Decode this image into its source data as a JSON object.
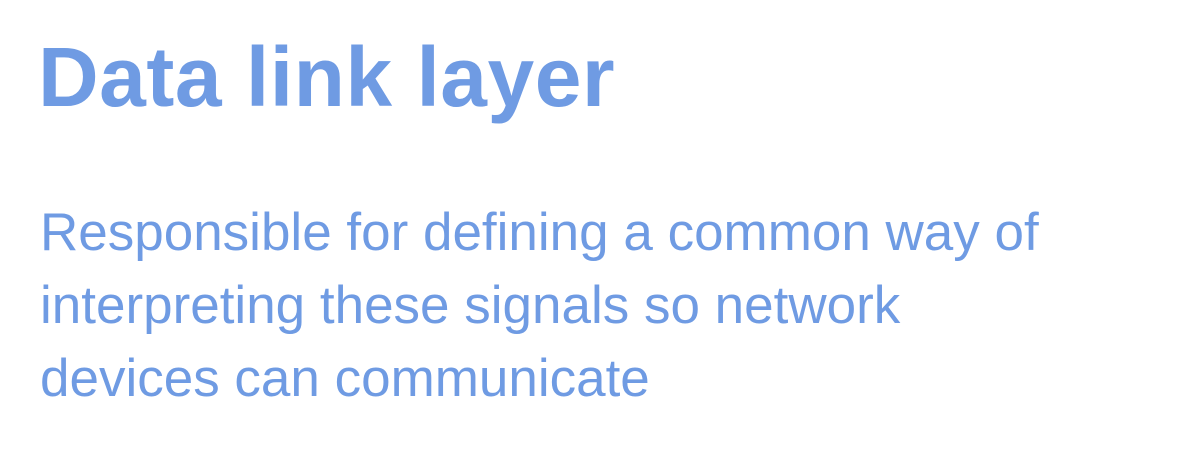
{
  "slide": {
    "title": "Data link layer",
    "body_lines": [
      "Responsible for defining a common way of",
      "interpreting these signals so network",
      "devices can communicate"
    ]
  },
  "colors": {
    "text": "#6f9be3",
    "background": "#ffffff"
  }
}
